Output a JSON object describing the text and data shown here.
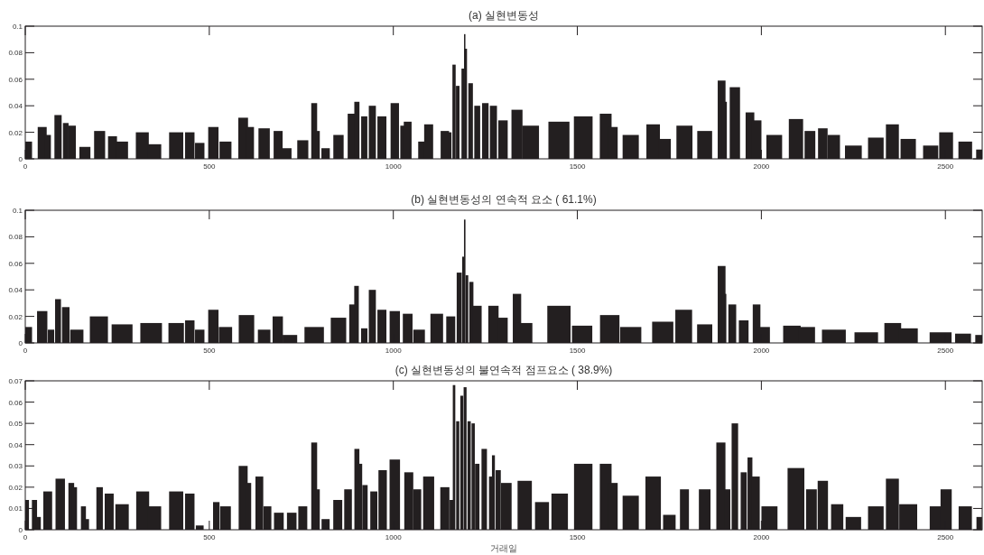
{
  "chart_data": [
    {
      "type": "bar",
      "title": "(a) 실현변동성",
      "color": "#231f20",
      "xlim": [
        0,
        2600
      ],
      "ylim": [
        0,
        0.1
      ],
      "xticks": [
        0,
        500,
        1000,
        1500,
        2000,
        2500
      ],
      "yticks": [
        0,
        0.02,
        0.04,
        0.06,
        0.08,
        0.1
      ],
      "x": [
        0,
        46,
        61,
        89,
        110,
        127,
        162,
        202,
        237,
        263,
        318,
        351,
        410,
        447,
        474,
        511,
        544,
        592,
        610,
        649,
        687,
        710,
        754,
        785,
        794,
        816,
        851,
        886,
        901,
        921,
        943,
        969,
        1004,
        1026,
        1039,
        1079,
        1096,
        1140,
        1153,
        1165,
        1175,
        1189,
        1194,
        1197,
        1210,
        1228,
        1250,
        1272,
        1298,
        1336,
        1373,
        1450,
        1516,
        1577,
        1596,
        1645,
        1706,
        1737,
        1791,
        1846,
        1892,
        1899,
        1928,
        1969,
        1987,
        2035,
        2094,
        2132,
        2167,
        2197,
        2250,
        2311,
        2356,
        2399,
        2460,
        2502,
        2554,
        2595
      ],
      "values": [
        0.013,
        0.024,
        0.018,
        0.033,
        0.027,
        0.025,
        0.009,
        0.021,
        0.017,
        0.013,
        0.02,
        0.011,
        0.02,
        0.02,
        0.012,
        0.024,
        0.013,
        0.031,
        0.024,
        0.023,
        0.021,
        0.008,
        0.014,
        0.042,
        0.021,
        0.008,
        0.018,
        0.034,
        0.043,
        0.032,
        0.04,
        0.032,
        0.042,
        0.025,
        0.028,
        0.013,
        0.026,
        0.021,
        0.02,
        0.071,
        0.055,
        0.068,
        0.094,
        0.083,
        0.057,
        0.04,
        0.042,
        0.04,
        0.029,
        0.037,
        0.025,
        0.028,
        0.032,
        0.034,
        0.024,
        0.018,
        0.026,
        0.015,
        0.025,
        0.021,
        0.059,
        0.043,
        0.054,
        0.035,
        0.029,
        0.018,
        0.03,
        0.021,
        0.023,
        0.018,
        0.01,
        0.016,
        0.026,
        0.015,
        0.01,
        0.02,
        0.013,
        0.007
      ]
    },
    {
      "type": "bar",
      "title": "(b) 실현변동성의 연속적 요소 ( 61.1%)",
      "color": "#231f20",
      "xlim": [
        0,
        2600
      ],
      "ylim": [
        0,
        0.1
      ],
      "xticks": [
        0,
        500,
        1000,
        1500,
        2000,
        2500
      ],
      "yticks": [
        0,
        0.02,
        0.04,
        0.06,
        0.08,
        0.1
      ],
      "x": [
        0,
        46,
        70,
        89,
        110,
        140,
        200,
        263,
        342,
        410,
        447,
        474,
        511,
        544,
        601,
        649,
        686,
        719,
        785,
        851,
        890,
        900,
        921,
        943,
        969,
        1004,
        1039,
        1070,
        1118,
        1156,
        1179,
        1190,
        1194,
        1200,
        1212,
        1228,
        1272,
        1298,
        1336,
        1355,
        1450,
        1513,
        1588,
        1645,
        1732,
        1789,
        1846,
        1892,
        1899,
        1921,
        1952,
        1987,
        2004,
        2083,
        2123,
        2197,
        2285,
        2357,
        2399,
        2487,
        2548,
        2595
      ],
      "values": [
        0.012,
        0.024,
        0.01,
        0.033,
        0.027,
        0.01,
        0.02,
        0.014,
        0.015,
        0.015,
        0.017,
        0.01,
        0.025,
        0.012,
        0.021,
        0.01,
        0.02,
        0.006,
        0.012,
        0.019,
        0.029,
        0.043,
        0.011,
        0.04,
        0.025,
        0.024,
        0.022,
        0.01,
        0.022,
        0.02,
        0.053,
        0.065,
        0.093,
        0.051,
        0.046,
        0.028,
        0.028,
        0.019,
        0.037,
        0.015,
        0.028,
        0.013,
        0.021,
        0.012,
        0.016,
        0.025,
        0.014,
        0.058,
        0.037,
        0.029,
        0.017,
        0.029,
        0.012,
        0.013,
        0.012,
        0.01,
        0.008,
        0.015,
        0.011,
        0.008,
        0.007,
        0.006
      ]
    },
    {
      "type": "bar",
      "title": "(c) 실현변동성의 불연속적 점프요소 ( 38.9%)",
      "xlabel": "거래일",
      "color": "#231f20",
      "xlim": [
        0,
        2600
      ],
      "ylim": [
        0,
        0.07
      ],
      "xticks": [
        0,
        500,
        1000,
        1500,
        2000,
        2500
      ],
      "yticks": [
        0,
        0.01,
        0.02,
        0.03,
        0.04,
        0.05,
        0.06,
        0.07
      ],
      "x": [
        0,
        25,
        35,
        61,
        95,
        125,
        134,
        158,
        168,
        184,
        202,
        228,
        263,
        319,
        351,
        410,
        447,
        474,
        500,
        519,
        544,
        592,
        605,
        636,
        658,
        689,
        724,
        754,
        785,
        794,
        816,
        849,
        877,
        901,
        911,
        923,
        947,
        971,
        1004,
        1042,
        1065,
        1096,
        1140,
        1158,
        1165,
        1175,
        1186,
        1195,
        1206,
        1217,
        1228,
        1247,
        1265,
        1272,
        1285,
        1307,
        1357,
        1404,
        1452,
        1516,
        1577,
        1596,
        1645,
        1706,
        1750,
        1791,
        1811,
        1846,
        1890,
        1908,
        1928,
        1952,
        1969,
        1985,
        2022,
        2094,
        2136,
        2167,
        2206,
        2250,
        2311,
        2356,
        2399,
        2478,
        2502,
        2554,
        2592
      ],
      "values": [
        0.014,
        0.014,
        0.006,
        0.018,
        0.024,
        0.022,
        0.02,
        0.011,
        0.005,
        0,
        0.02,
        0.017,
        0.012,
        0.018,
        0.011,
        0.018,
        0.017,
        0.002,
        0,
        0.013,
        0.011,
        0.03,
        0.022,
        0.025,
        0.011,
        0.008,
        0.008,
        0.011,
        0.041,
        0.019,
        0.005,
        0.014,
        0.019,
        0.038,
        0.031,
        0.021,
        0.018,
        0.028,
        0.033,
        0.027,
        0.019,
        0.025,
        0.02,
        0.014,
        0.068,
        0.051,
        0.063,
        0.067,
        0.051,
        0.05,
        0.031,
        0.038,
        0.025,
        0.035,
        0.028,
        0.022,
        0.023,
        0.013,
        0.017,
        0.031,
        0.031,
        0.022,
        0.016,
        0.025,
        0.007,
        0.019,
        0,
        0.019,
        0.041,
        0.019,
        0.05,
        0.027,
        0.034,
        0.025,
        0.011,
        0.029,
        0.019,
        0.023,
        0.012,
        0.006,
        0.011,
        0.024,
        0.012,
        0.011,
        0.019,
        0.011,
        0.006
      ]
    }
  ]
}
